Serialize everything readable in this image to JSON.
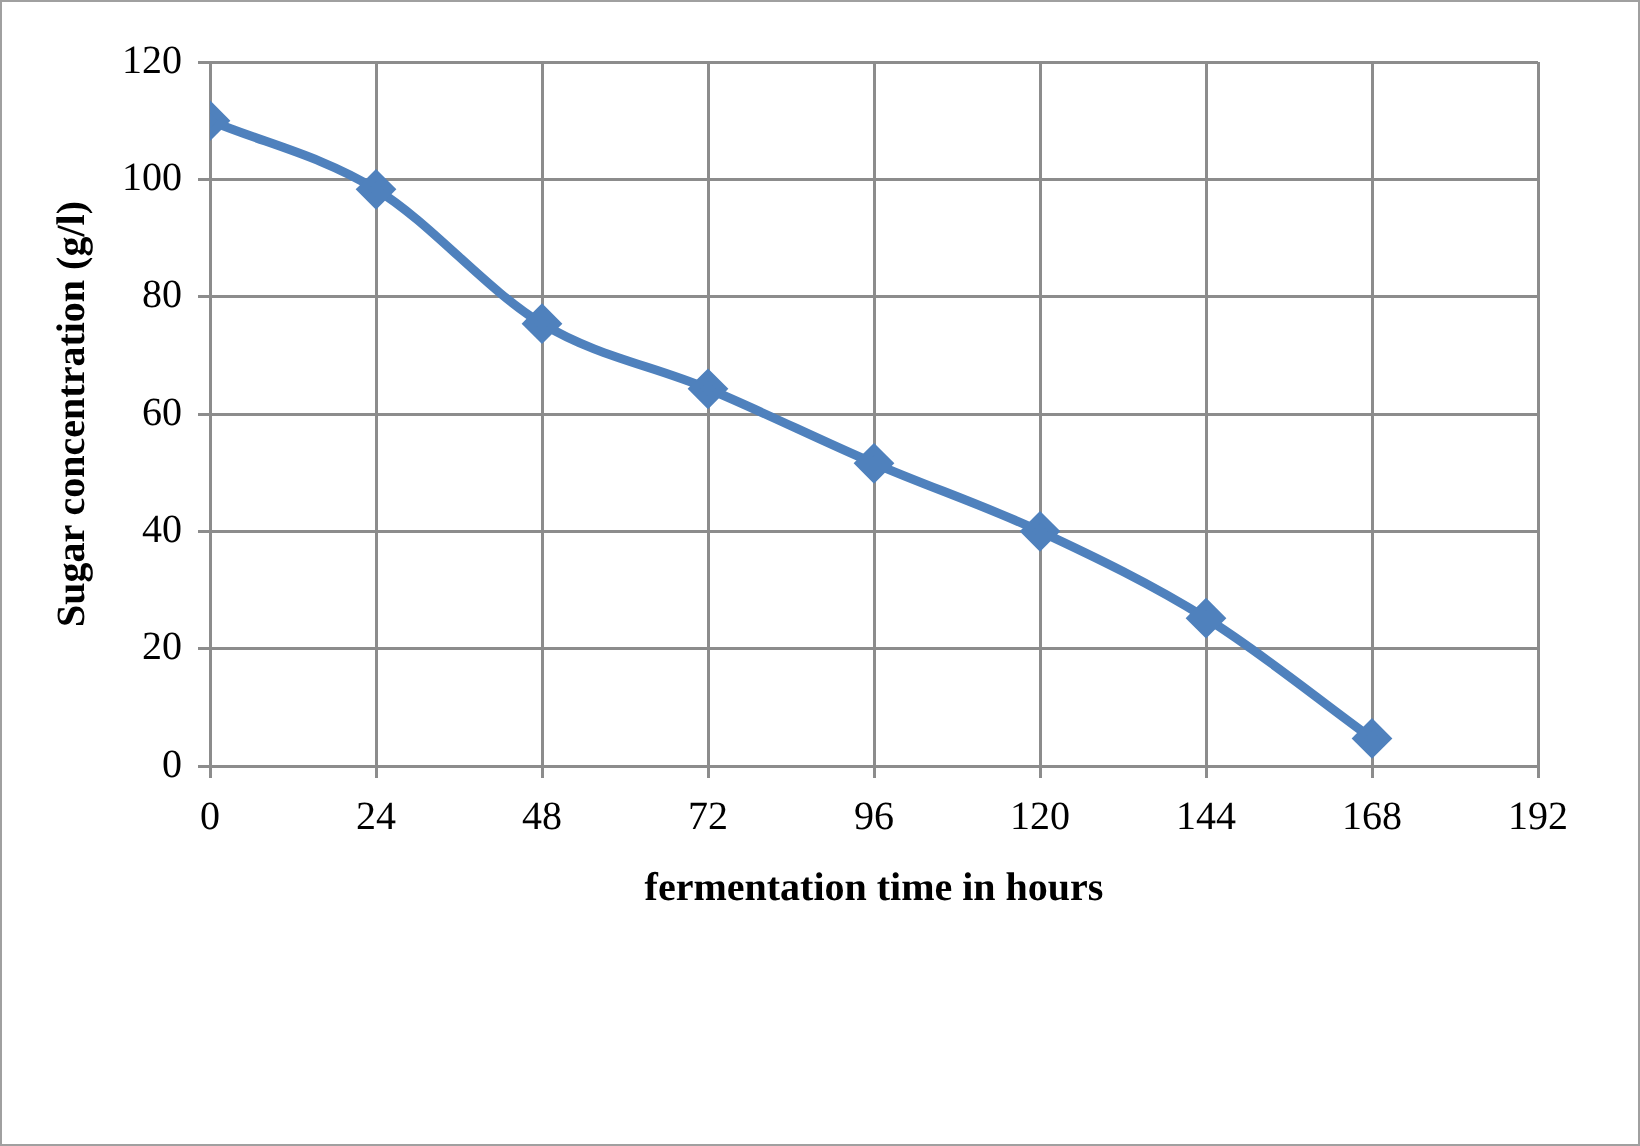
{
  "chart_data": {
    "type": "line",
    "xlabel": "fermentation time in hours",
    "ylabel": "Sugar concentration (g/l)",
    "x": [
      0,
      24,
      48,
      72,
      96,
      120,
      144,
      168
    ],
    "series": [
      {
        "color": "#4f81bd",
        "values": [
          110,
          98.3,
          75.4,
          64.3,
          51.6,
          40,
          25.2,
          4.7
        ]
      }
    ],
    "xlim": [
      0,
      192
    ],
    "xticks": [
      0,
      24,
      48,
      72,
      96,
      120,
      144,
      168,
      192
    ],
    "ylim": [
      0,
      120
    ],
    "yticks": [
      0,
      20,
      40,
      60,
      80,
      100,
      120
    ],
    "grid": true,
    "legend": false,
    "marker": "diamond",
    "line_style": "solid"
  }
}
